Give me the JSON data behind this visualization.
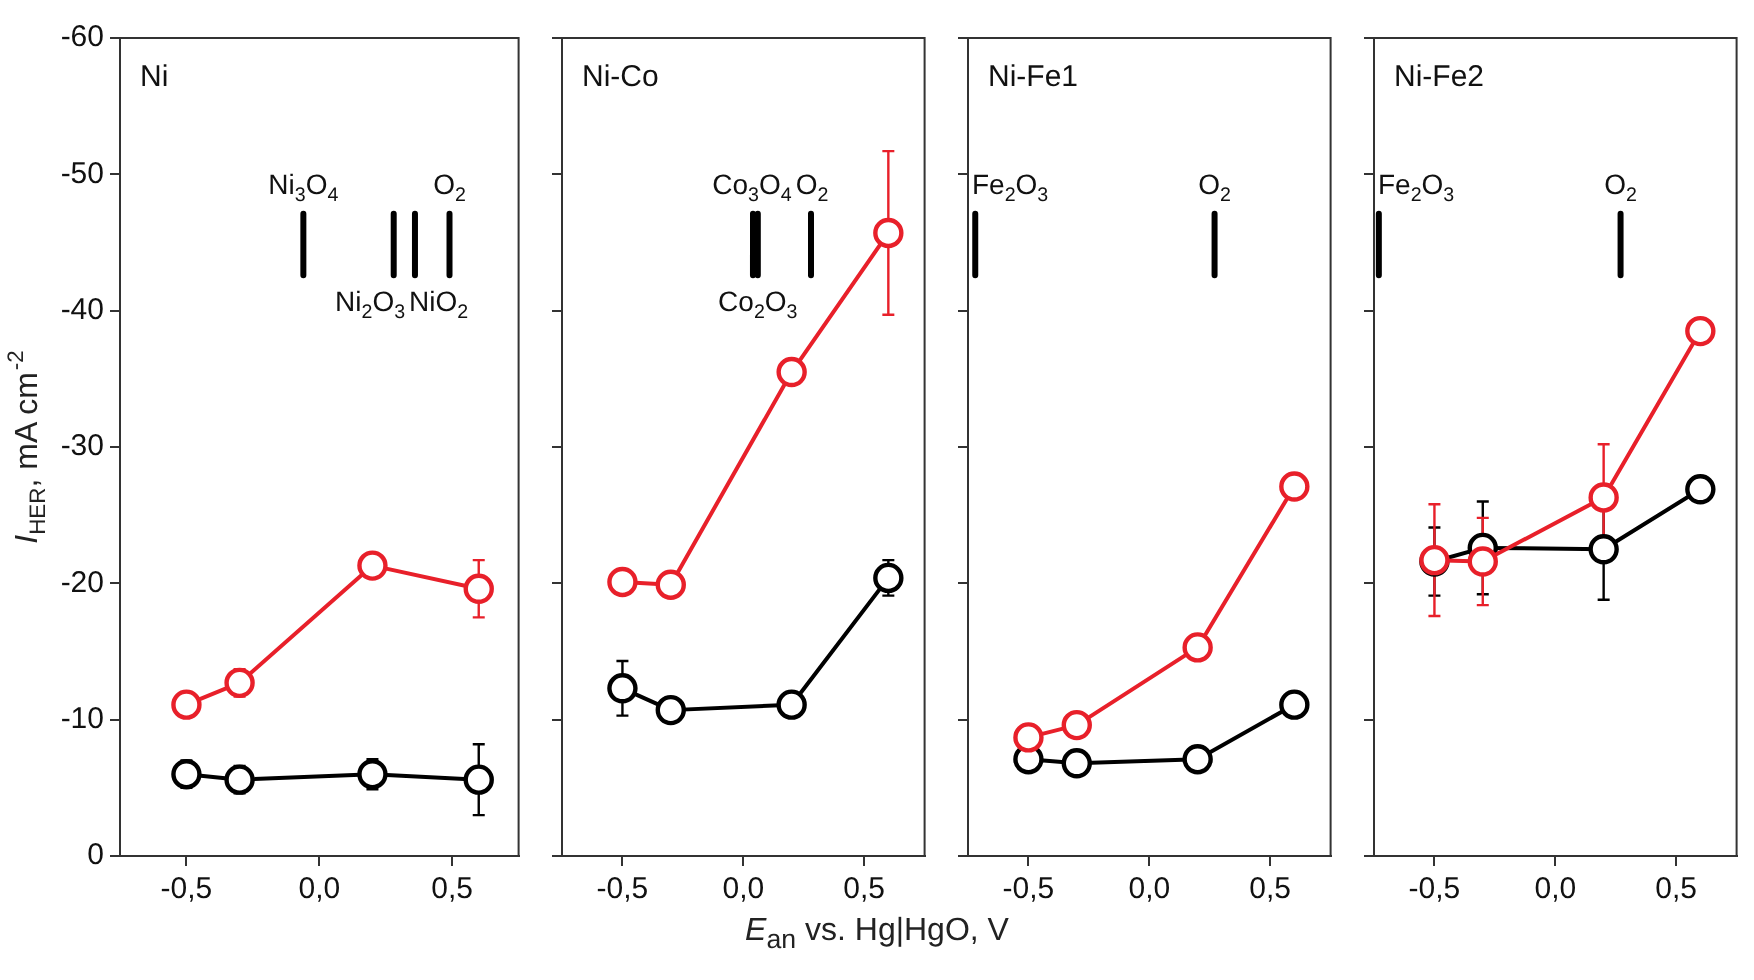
{
  "chart_data": [
    {
      "type": "line",
      "title": "Ni",
      "ylabel": "I$_{HER}$, mA cm$^{-2}$",
      "xlim": [
        -0.75,
        0.75
      ],
      "xticks": [
        {
          "value": -0.5,
          "label": "-0,5"
        },
        {
          "value": 0,
          "label": "0,0"
        },
        {
          "value": 0.5,
          "label": "0,5"
        }
      ],
      "ylim": [
        0,
        -60
      ],
      "yticks": [
        0,
        -10,
        -20,
        -30,
        -40,
        -50,
        -60
      ],
      "grid": false,
      "legend": false,
      "marker": "circle",
      "line_style": "solid",
      "x": [
        -0.5,
        -0.3,
        0.2,
        0.6
      ],
      "series": [
        {
          "color": "#000000",
          "values": [
            -6.0,
            -5.6,
            -6.0,
            -5.6
          ],
          "errors": [
            1.0,
            1.0,
            1.1,
            2.6
          ]
        },
        {
          "color": "#e8202a",
          "values": [
            -11.1,
            -12.7,
            -21.3,
            -19.6
          ],
          "errors": [
            null,
            1.0,
            null,
            2.1
          ]
        },
        {
          "type": "line",
          "marker": "none",
          "color": "#000000",
          "x": [
            -0.06,
            -0.06
          ],
          "values": [
            -47.1,
            -42.6
          ]
        },
        {
          "type": "line",
          "marker": "none",
          "color": "#000000",
          "x": [
            0.28,
            0.28
          ],
          "values": [
            -47.1,
            -42.6
          ]
        },
        {
          "type": "line",
          "marker": "none",
          "color": "#000000",
          "x": [
            0.36,
            0.36
          ],
          "values": [
            -47.1,
            -42.6
          ]
        },
        {
          "type": "line",
          "marker": "none",
          "color": "#000000",
          "x": [
            0.49,
            0.49
          ],
          "values": [
            -47.1,
            -42.6
          ]
        }
      ],
      "annotations": [
        {
          "text": "Ni$_{3}$O$_{4}$",
          "x": -0.06,
          "y": -47.1
        },
        {
          "text": "Ni$_{2}$O$_{3}$",
          "x": 0.28,
          "y": -42.6
        },
        {
          "text": "NiO$_{2}$",
          "x": 0.36,
          "y": -42.6
        },
        {
          "text": "O$_{2}$",
          "x": 0.49,
          "y": -47.1
        }
      ]
    },
    {
      "type": "line",
      "title": "Ni-Co",
      "xlabel": "E$_{an}$ vs. Hg|HgO, V",
      "xlim": [
        -0.75,
        0.75
      ],
      "xticks": [
        {
          "value": -0.5,
          "label": "-0,5"
        },
        {
          "value": 0,
          "label": "0,0"
        },
        {
          "value": 0.5,
          "label": "0,5"
        }
      ],
      "ylim": [
        0,
        -60
      ],
      "yticks": [
        0,
        -10,
        -20,
        -30,
        -40,
        -50,
        -60
      ],
      "tick_labels": "x",
      "grid": false,
      "legend": false,
      "marker": "circle",
      "line_style": "solid",
      "x": [
        -0.5,
        -0.3,
        0.2,
        0.6
      ],
      "series": [
        {
          "color": "#000000",
          "values": [
            -12.3,
            -10.7,
            -11.1,
            -20.4
          ],
          "errors": [
            2.0,
            null,
            null,
            1.3
          ]
        },
        {
          "color": "#e8202a",
          "values": [
            -20.1,
            -19.9,
            -35.5,
            -45.7
          ],
          "errors": [
            null,
            null,
            null,
            6.0
          ]
        },
        {
          "type": "line",
          "marker": "none",
          "color": "#000000",
          "x": [
            0.04,
            0.04
          ],
          "values": [
            -47.1,
            -42.6
          ]
        },
        {
          "type": "line",
          "marker": "none",
          "color": "#000000",
          "x": [
            0.06,
            0.06
          ],
          "values": [
            -47.1,
            -42.6
          ]
        },
        {
          "type": "line",
          "marker": "none",
          "color": "#000000",
          "x": [
            0.28,
            0.28
          ],
          "values": [
            -47.1,
            -42.6
          ]
        }
      ],
      "annotations": [
        {
          "text": "Co$_{3}$O$_{4}$",
          "x": 0.04,
          "y": -47.1
        },
        {
          "text": "Co$_{2}$O$_{3}$",
          "x": 0.06,
          "y": -42.6
        },
        {
          "text": "O$_{2}$",
          "x": 0.28,
          "y": -47.1
        }
      ]
    },
    {
      "type": "line",
      "title": "Ni-Fe1",
      "xlim": [
        -0.75,
        0.75
      ],
      "xticks": [
        {
          "value": -0.5,
          "label": "-0,5"
        },
        {
          "value": 0,
          "label": "0,0"
        },
        {
          "value": 0.5,
          "label": "0,5"
        }
      ],
      "ylim": [
        0,
        -60
      ],
      "yticks": [
        0,
        -10,
        -20,
        -30,
        -40,
        -50,
        -60
      ],
      "tick_labels": "x",
      "grid": false,
      "legend": false,
      "marker": "circle",
      "line_style": "solid",
      "x": [
        -0.5,
        -0.3,
        0.2,
        0.6
      ],
      "series": [
        {
          "color": "#000000",
          "values": [
            -7.1,
            -6.8,
            -7.1,
            -11.1
          ]
        },
        {
          "color": "#e8202a",
          "values": [
            -8.7,
            -9.6,
            -15.3,
            -27.1
          ]
        },
        {
          "type": "line",
          "marker": "none",
          "color": "#000000",
          "x": [
            -0.72,
            -0.72
          ],
          "values": [
            -47.1,
            -42.6
          ]
        },
        {
          "type": "line",
          "marker": "none",
          "color": "#000000",
          "x": [
            0.27,
            0.27
          ],
          "values": [
            -47.1,
            -42.6
          ]
        }
      ],
      "annotations": [
        {
          "text": "Fe$_{2}$O$_{3}$",
          "x": -0.72,
          "y": -47.1
        },
        {
          "text": "O$_{2}$",
          "x": 0.27,
          "y": -47.1
        }
      ]
    },
    {
      "type": "line",
      "title": "Ni-Fe2",
      "xlim": [
        -0.75,
        0.75
      ],
      "xticks": [
        {
          "value": -0.5,
          "label": "-0,5"
        },
        {
          "value": 0,
          "label": "0,0"
        },
        {
          "value": 0.5,
          "label": "0,5"
        }
      ],
      "ylim": [
        0,
        -60
      ],
      "yticks": [
        0,
        -10,
        -20,
        -30,
        -40,
        -50,
        -60
      ],
      "tick_labels": "x",
      "grid": false,
      "legend": false,
      "marker": "circle",
      "line_style": "solid",
      "x": [
        -0.5,
        -0.3,
        0.2,
        0.6
      ],
      "series": [
        {
          "color": "#000000",
          "values": [
            -21.6,
            -22.6,
            -22.5,
            -26.9
          ],
          "errors": [
            2.5,
            3.4,
            3.7,
            null
          ]
        },
        {
          "color": "#e8202a",
          "values": [
            -21.7,
            -21.6,
            -26.3,
            -38.5
          ],
          "errors": [
            4.1,
            3.2,
            3.9,
            null
          ]
        },
        {
          "type": "line",
          "marker": "none",
          "color": "#000000",
          "x": [
            -0.73,
            -0.73
          ],
          "values": [
            -47.1,
            -42.6
          ]
        },
        {
          "type": "line",
          "marker": "none",
          "color": "#000000",
          "x": [
            0.27,
            0.27
          ],
          "values": [
            -47.1,
            -42.6
          ]
        }
      ],
      "annotations": [
        {
          "text": "Fe$_{2}$O$_{3}$",
          "x": -0.73,
          "y": -47.1
        },
        {
          "text": "O$_{2}$",
          "x": 0.27,
          "y": -47.1
        }
      ]
    }
  ]
}
